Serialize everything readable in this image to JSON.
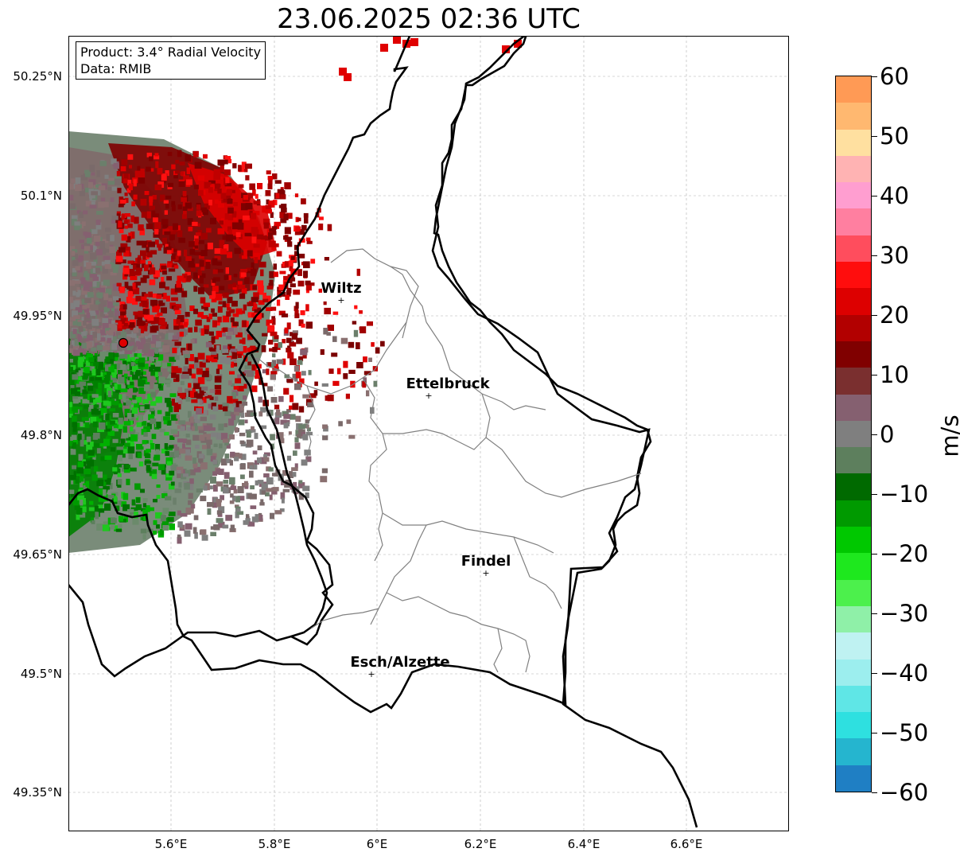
{
  "title": "23.06.2025 02:36 UTC",
  "info": {
    "product": "Product: 3.4° Radial Velocity",
    "data": "Data: RMIB"
  },
  "axes": {
    "lat_ticks": [
      "50.25°N",
      "50.1°N",
      "49.95°N",
      "49.8°N",
      "49.65°N",
      "49.5°N",
      "49.35°N"
    ],
    "lon_ticks": [
      "5.6°E",
      "5.8°E",
      "6°E",
      "6.2°E",
      "6.4°E",
      "6.6°E"
    ],
    "grid": true
  },
  "cities": [
    {
      "name": "Wiltz"
    },
    {
      "name": "Ettelbruck"
    },
    {
      "name": "Findel"
    },
    {
      "name": "Esch/Alzette"
    }
  ],
  "colorbar": {
    "unit": "m/s",
    "ticks": [
      "60",
      "50",
      "40",
      "30",
      "20",
      "10",
      "0",
      "−10",
      "−20",
      "−30",
      "−40",
      "−50",
      "−60"
    ],
    "range": [
      -60,
      60
    ],
    "colors": [
      "#1f7fc4",
      "#25b5cf",
      "#2ee0e0",
      "#5fe6e6",
      "#9ceeee",
      "#bff2f2",
      "#8ff0a8",
      "#4cf04c",
      "#1ee81e",
      "#00c800",
      "#009a00",
      "#006a00",
      "#5d7f5d",
      "#7f7f7f",
      "#856070",
      "#7a2f2f",
      "#800000",
      "#b20000",
      "#dd0000",
      "#ff0d0d",
      "#ff4d5d",
      "#ff7fa0",
      "#ff9ed0",
      "#ffb3b3",
      "#ffe0a0",
      "#ffb870",
      "#ff9a55"
    ]
  },
  "radar": {
    "label": "radar-site",
    "color": "#e00000"
  }
}
